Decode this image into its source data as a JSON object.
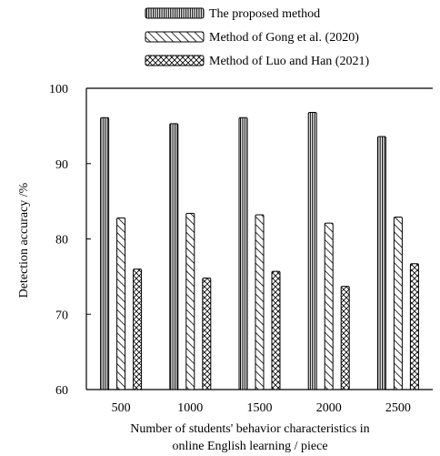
{
  "chart_data": {
    "type": "bar",
    "categories": [
      "500",
      "1000",
      "1500",
      "2000",
      "2500"
    ],
    "series": [
      {
        "name": "The proposed  method",
        "pattern": "vertical-stripes",
        "values": [
          96.1,
          95.3,
          96.1,
          96.8,
          93.6
        ]
      },
      {
        "name": "Method of Gong et al. (2020)",
        "pattern": "diagonal-hatch",
        "values": [
          82.8,
          83.4,
          83.2,
          82.1,
          82.9
        ]
      },
      {
        "name": "Method of Luo and Han (2021)",
        "pattern": "crosshatch",
        "values": [
          76.0,
          74.8,
          75.7,
          73.7,
          76.7
        ]
      }
    ],
    "title": "",
    "xlabel_lines": [
      "Number of students' behavior characteristics in",
      "online English learning / piece"
    ],
    "ylabel": "Detection accuracy /%",
    "ylim": [
      60,
      100
    ],
    "yticks": [
      "60",
      "70",
      "80",
      "90",
      "100"
    ],
    "grid": false,
    "legend_placement": "top-center"
  }
}
